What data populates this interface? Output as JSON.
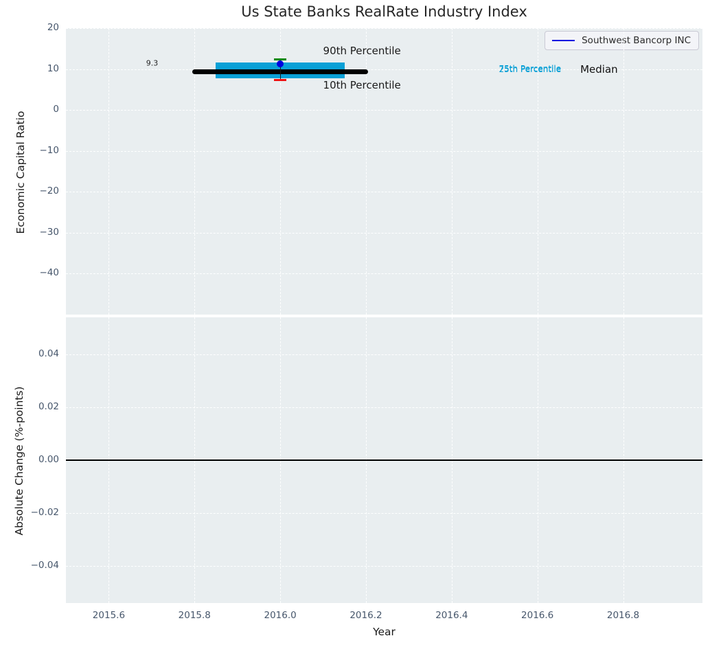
{
  "title": "Us State Banks RealRate Industry Index",
  "legend": {
    "label": "Southwest Bancorp INC"
  },
  "colors": {
    "figure_bg": "#ffffff",
    "axes_bg": "#e9eef0",
    "grid": "#ffffff",
    "tick_label": "#46566b",
    "text": "#262626",
    "box_fill": "#0aa0d6",
    "median_line": "#000000",
    "whisker_line": "#1a1a1a",
    "p90_cap": "#0a8a0a",
    "p10_cap": "#f01010",
    "company_blue": "#0000e0",
    "zero_line": "#000000"
  },
  "chart_data": [
    {
      "type": "boxplot",
      "title": "Us State Banks RealRate Industry Index",
      "ylabel": "Economic Capital Ratio",
      "xlim": [
        2015.5,
        2016.985
      ],
      "ylim": [
        -50,
        20
      ],
      "grid": "white dashed on",
      "legend_position": "upper right",
      "yticks": [
        {
          "v": 20,
          "label": "20"
        },
        {
          "v": 10,
          "label": "10"
        },
        {
          "v": 0,
          "label": "0"
        },
        {
          "v": -10,
          "label": "−10"
        },
        {
          "v": -20,
          "label": "−20"
        },
        {
          "v": -30,
          "label": "−30"
        },
        {
          "v": -40,
          "label": "−40"
        }
      ],
      "xticks": [
        {
          "v": 2015.6,
          "label": "2015.6"
        },
        {
          "v": 2015.8,
          "label": "2015.8"
        },
        {
          "v": 2016.0,
          "label": "2016.0"
        },
        {
          "v": 2016.2,
          "label": "2016.2"
        },
        {
          "v": 2016.4,
          "label": "2016.4"
        },
        {
          "v": 2016.6,
          "label": "2016.6"
        },
        {
          "v": 2016.8,
          "label": "2016.8"
        }
      ],
      "box": {
        "x": 2016.0,
        "median": 9.3,
        "p25": 7.8,
        "p75": 11.6,
        "p10": 7.3,
        "p90": 12.4,
        "median_span_x": [
          2015.8,
          2016.2
        ],
        "box_span_x": [
          2015.85,
          2016.15
        ],
        "cap_span_x": [
          2015.985,
          2016.015
        ]
      },
      "series": [
        {
          "name": "Southwest Bancorp INC",
          "x": [
            2016.0
          ],
          "y": [
            11.3
          ],
          "marker": "dot"
        }
      ],
      "annotations": [
        {
          "text": "9.3",
          "x": 2015.687,
          "y": 11.5,
          "size": 11,
          "color": "#262626"
        },
        {
          "text": "90th Percentile",
          "x": 2016.1,
          "y": 14.4,
          "size": 15,
          "color": "#1a1a1a"
        },
        {
          "text": "10th Percentile",
          "x": 2016.1,
          "y": 6.0,
          "size": 15,
          "color": "#1a1a1a"
        },
        {
          "text": "75th Percentile",
          "x": 2016.51,
          "y": 10.15,
          "size": 12,
          "color": "#0aa0d6"
        },
        {
          "text": "25th Percentile",
          "x": 2016.51,
          "y": 9.85,
          "size": 12,
          "color": "#0aa0d6"
        },
        {
          "text": "Median",
          "x": 2016.7,
          "y": 9.9,
          "size": 15,
          "color": "#111111"
        }
      ]
    },
    {
      "type": "line",
      "ylabel": "Absolute Change (%-points)",
      "xlabel": "Year",
      "xlim": [
        2015.5,
        2016.985
      ],
      "ylim": [
        -0.054,
        0.054
      ],
      "grid": "white dashed on",
      "yticks": [
        {
          "v": 0.04,
          "label": "0.04"
        },
        {
          "v": 0.02,
          "label": "0.02"
        },
        {
          "v": 0.0,
          "label": "0.00"
        },
        {
          "v": -0.02,
          "label": "−0.02"
        },
        {
          "v": -0.04,
          "label": "−0.04"
        }
      ],
      "xticks": [
        {
          "v": 2015.6,
          "label": "2015.6"
        },
        {
          "v": 2015.8,
          "label": "2015.8"
        },
        {
          "v": 2016.0,
          "label": "2016.0"
        },
        {
          "v": 2016.2,
          "label": "2016.2"
        },
        {
          "v": 2016.4,
          "label": "2016.4"
        },
        {
          "v": 2016.6,
          "label": "2016.6"
        },
        {
          "v": 2016.8,
          "label": "2016.8"
        }
      ],
      "zero_line_y": 0.0,
      "series": []
    }
  ]
}
